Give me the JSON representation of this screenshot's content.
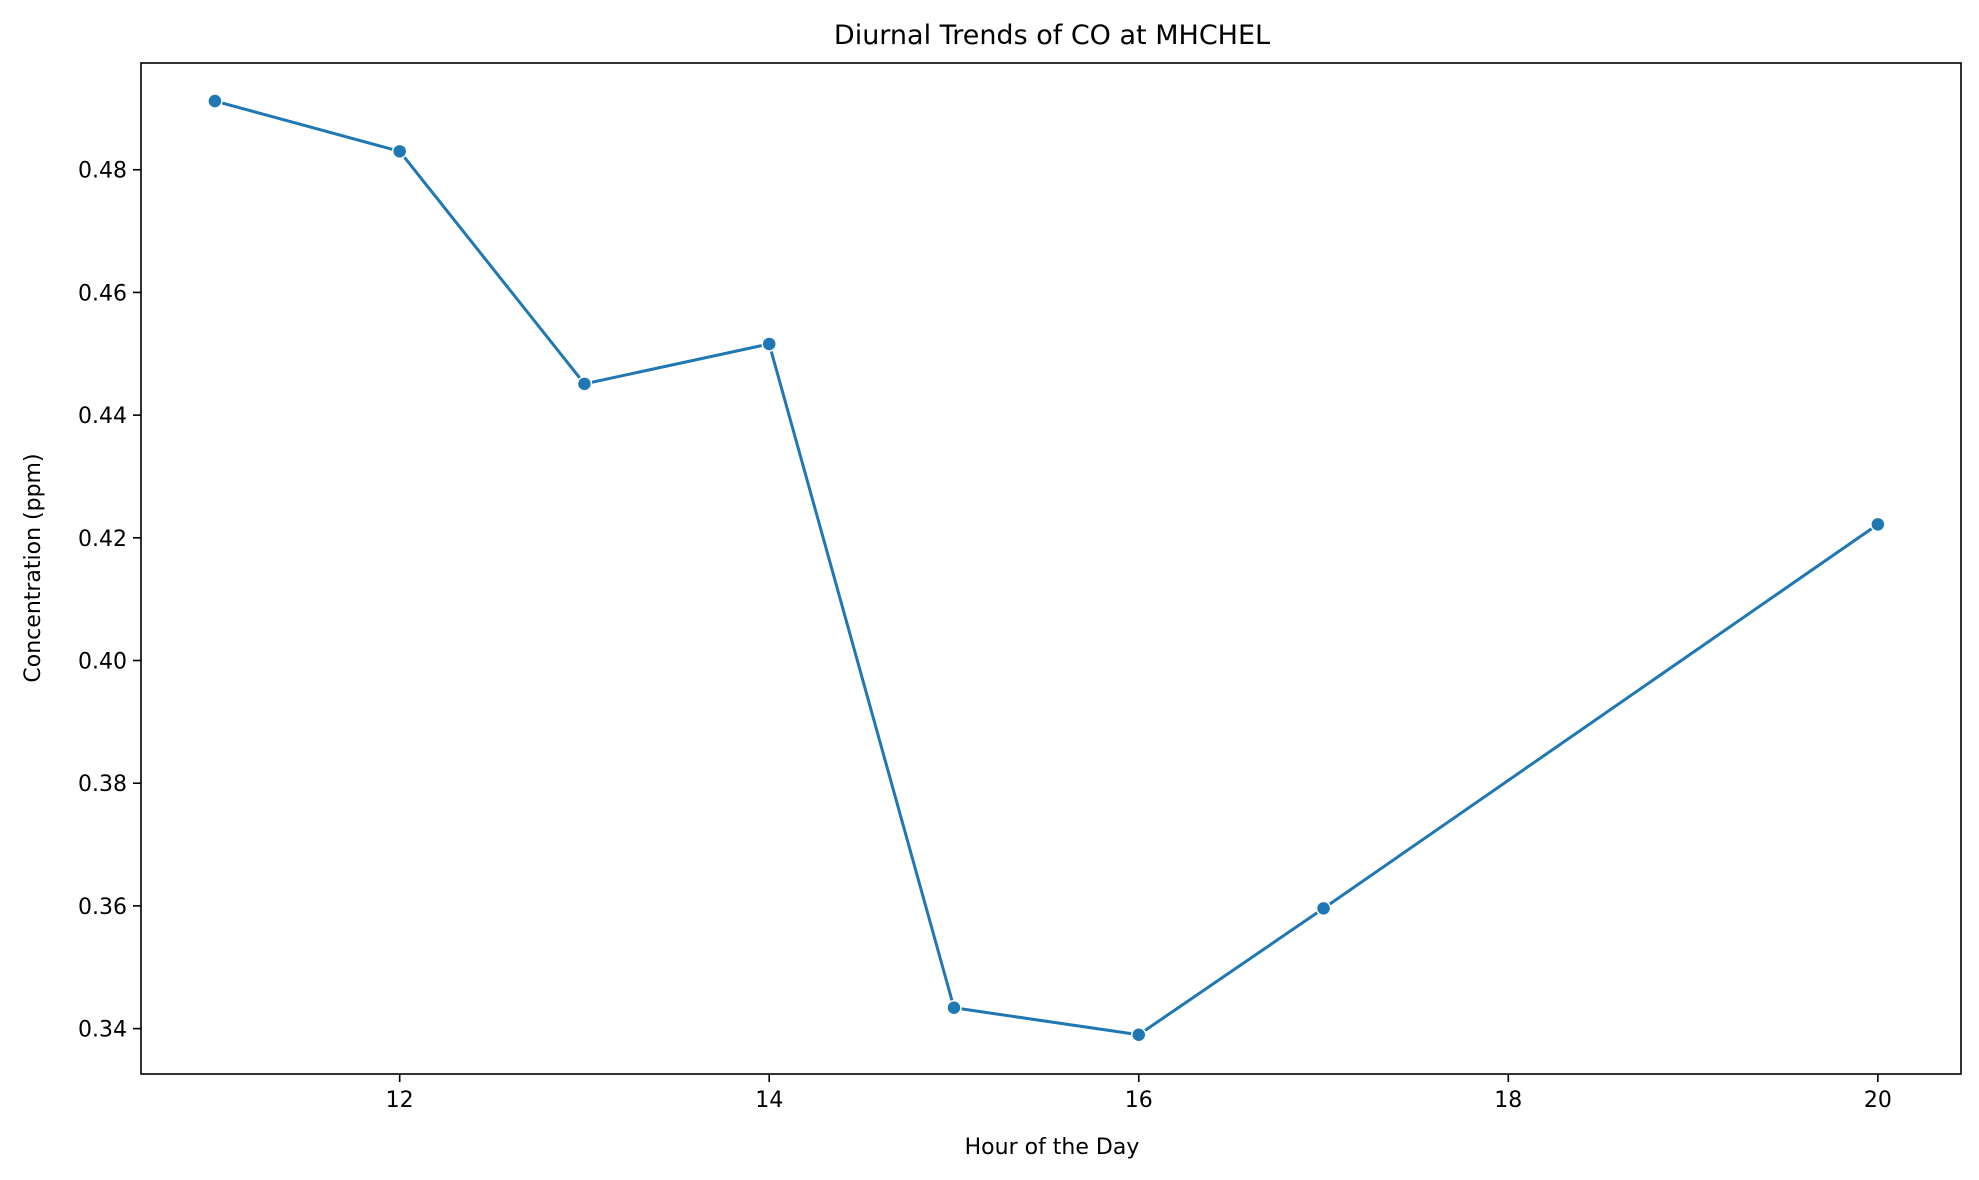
{
  "chart_data": {
    "type": "line",
    "title": "Diurnal Trends of CO at MHCHEL",
    "xlabel": "Hour of the Day",
    "ylabel": "Concentration (ppm)",
    "xlim": [
      10.6,
      20.45
    ],
    "ylim": [
      0.3326,
      0.4974
    ],
    "xticks": [
      12,
      14,
      16,
      18,
      20
    ],
    "yticks": [
      0.34,
      0.36,
      0.38,
      0.4,
      0.42,
      0.44,
      0.46,
      0.48
    ],
    "yticks_labels": [
      "0.34",
      "0.36",
      "0.38",
      "0.40",
      "0.42",
      "0.44",
      "0.46",
      "0.48"
    ],
    "grid": false,
    "series": [
      {
        "color": "#1f77b4",
        "x": [
          11,
          12,
          13,
          14,
          15,
          16,
          17,
          20
        ],
        "y": [
          0.4912,
          0.483,
          0.4451,
          0.4516,
          0.3434,
          0.339,
          0.3596,
          0.4222
        ]
      }
    ]
  }
}
